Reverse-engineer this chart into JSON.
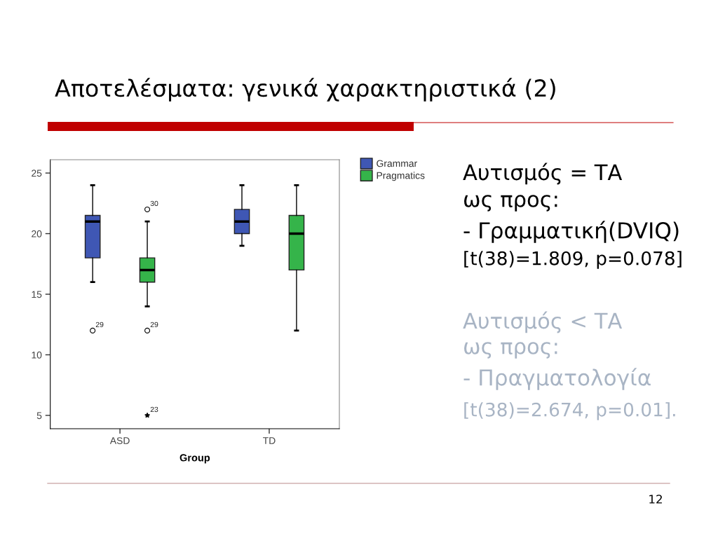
{
  "chart_data": {
    "type": "box",
    "title": "Αποτελέσματα: γενικά χαρακτηριστικά (2)",
    "xlabel": "Group",
    "categories": [
      "ASD",
      "TD"
    ],
    "series": [
      {
        "name": "Grammar",
        "color": "#3f57b4",
        "boxes": [
          {
            "low": 16,
            "q1": 18,
            "median": 21,
            "q3": 21.5,
            "high": 24,
            "outliers": [
              12
            ]
          },
          {
            "low": 19,
            "q1": 20,
            "median": 21,
            "q3": 22,
            "high": 24
          }
        ]
      },
      {
        "name": "Pragmatics",
        "color": "#35b44a",
        "boxes": [
          {
            "low": 14,
            "q1": 16,
            "median": 17,
            "q3": 18,
            "high": 21,
            "outliers": [
              22,
              12,
              5
            ]
          },
          {
            "low": 12,
            "q1": 17,
            "median": 20,
            "q3": 21.5,
            "high": 24
          }
        ]
      }
    ],
    "ylim": [
      3.9,
      26.1
    ],
    "yticks": [
      5,
      10,
      15,
      20,
      25
    ],
    "legend": "top right",
    "annotations": [
      "29",
      "30",
      "29",
      "23",
      "Αυτισμός = ΤΑ",
      "ως προς:",
      "- Γραμματική(DVIQ)",
      "[t(38)=1.809, p=0.078]",
      "Αυτισμός < ΤΑ",
      "ως προς:",
      "- Πραγματολογία",
      "[t(38)=2.674, p=0.01].",
      "12"
    ]
  }
}
